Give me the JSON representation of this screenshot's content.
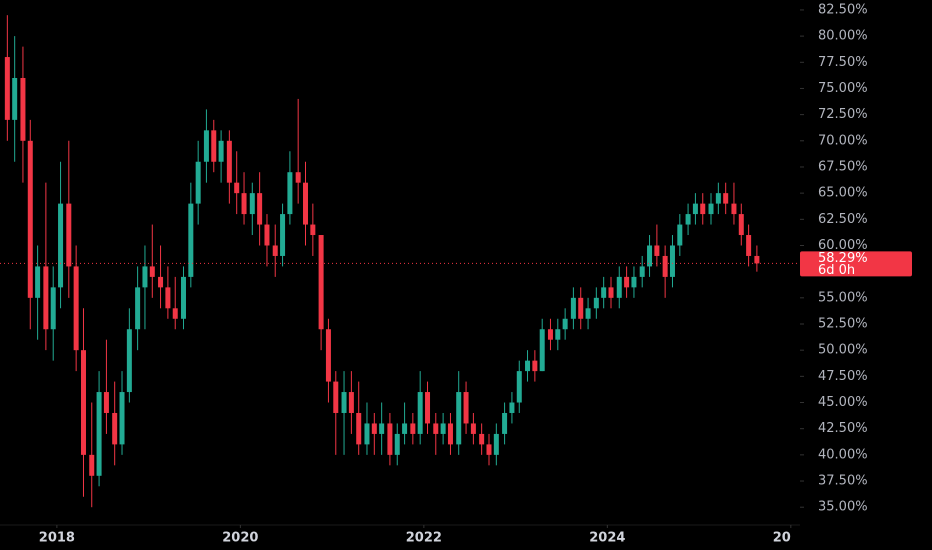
{
  "chart_data": {
    "type": "candlestick",
    "up_color": "#22ab94",
    "down_color": "#f23645",
    "xlim": [
      2017.38,
      2026.1
    ],
    "xticks": [
      2018,
      2020,
      2022,
      2024,
      {
        "value": 2026,
        "label": "20"
      }
    ],
    "ylim": [
      33.3,
      83.45
    ],
    "yticks": [
      {
        "value": 35,
        "label": "35.00%"
      },
      {
        "value": 37.5,
        "label": "37.50%"
      },
      {
        "value": 40,
        "label": "40.00%"
      },
      {
        "value": 42.5,
        "label": "42.50%"
      },
      {
        "value": 45,
        "label": "45.00%"
      },
      {
        "value": 47.5,
        "label": "47.50%"
      },
      {
        "value": 50,
        "label": "50.00%"
      },
      {
        "value": 52.5,
        "label": "52.50%"
      },
      {
        "value": 55,
        "label": "55.00%"
      },
      {
        "value": 57.5,
        "label": "57.50%"
      },
      {
        "value": 60,
        "label": "60.00%"
      },
      {
        "value": 62.5,
        "label": "62.50%"
      },
      {
        "value": 65,
        "label": "65.00%"
      },
      {
        "value": 67.5,
        "label": "67.50%"
      },
      {
        "value": 70,
        "label": "70.00%"
      },
      {
        "value": 72.5,
        "label": "72.50%"
      },
      {
        "value": 75,
        "label": "75.00%"
      },
      {
        "value": 77.5,
        "label": "77.50%"
      },
      {
        "value": 80,
        "label": "80.00%"
      },
      {
        "value": 82.5,
        "label": "82.50%"
      }
    ],
    "last_price": {
      "value": 58.29,
      "label": "58.29%"
    },
    "countdown": "6d 0h",
    "x": [
      2017.46,
      2017.54,
      2017.63,
      2017.71,
      2017.79,
      2017.88,
      2017.96,
      2018.04,
      2018.13,
      2018.21,
      2018.29,
      2018.38,
      2018.46,
      2018.54,
      2018.63,
      2018.71,
      2018.79,
      2018.88,
      2018.96,
      2019.04,
      2019.13,
      2019.21,
      2019.29,
      2019.38,
      2019.46,
      2019.54,
      2019.63,
      2019.71,
      2019.79,
      2019.88,
      2019.96,
      2020.04,
      2020.13,
      2020.21,
      2020.29,
      2020.38,
      2020.46,
      2020.54,
      2020.63,
      2020.71,
      2020.79,
      2020.88,
      2020.96,
      2021.04,
      2021.13,
      2021.21,
      2021.29,
      2021.38,
      2021.46,
      2021.54,
      2021.63,
      2021.71,
      2021.79,
      2021.88,
      2021.96,
      2022.04,
      2022.13,
      2022.21,
      2022.29,
      2022.38,
      2022.46,
      2022.54,
      2022.63,
      2022.71,
      2022.79,
      2022.88,
      2022.96,
      2023.04,
      2023.13,
      2023.21,
      2023.29,
      2023.38,
      2023.46,
      2023.54,
      2023.63,
      2023.71,
      2023.79,
      2023.88,
      2023.96,
      2024.04,
      2024.13,
      2024.21,
      2024.29,
      2024.38,
      2024.46,
      2024.54,
      2024.63,
      2024.71,
      2024.79,
      2024.88,
      2024.96,
      2025.04,
      2025.13,
      2025.21,
      2025.29,
      2025.38,
      2025.46,
      2025.54,
      2025.63
    ],
    "open": [
      78,
      72,
      76,
      70,
      55,
      58,
      52,
      56,
      64,
      58,
      50,
      40,
      38,
      46,
      44,
      41,
      46,
      52,
      56,
      58,
      57,
      56,
      54,
      53,
      57,
      64,
      68,
      71,
      68,
      70,
      66,
      65,
      63,
      65,
      62,
      60,
      59,
      63,
      67,
      66,
      62,
      61,
      52,
      47,
      44,
      46,
      44,
      41,
      43,
      42,
      43,
      40,
      42,
      43,
      42,
      46,
      43,
      42,
      43,
      41,
      46,
      43,
      42,
      41,
      40,
      42,
      44,
      45,
      48,
      49,
      48,
      52,
      51,
      52,
      53,
      55,
      53,
      54,
      55,
      56,
      55,
      57,
      56,
      57,
      58,
      60,
      59,
      57,
      60,
      62,
      63,
      64,
      63,
      64,
      65,
      64,
      63,
      61,
      59
    ],
    "high": [
      82,
      80,
      79,
      72,
      60,
      66,
      58,
      68,
      70,
      60,
      54,
      45,
      48,
      51,
      47,
      48,
      54,
      58,
      60,
      62,
      60,
      58,
      57,
      58,
      66,
      70,
      73,
      72,
      71,
      71,
      69,
      67,
      66,
      67,
      63,
      62,
      64,
      69,
      74,
      68,
      64,
      61,
      53,
      48,
      48,
      48,
      47,
      45,
      44,
      45,
      44,
      43,
      45,
      44,
      48,
      47,
      44,
      44,
      44,
      48,
      47,
      44,
      43,
      42,
      43,
      45,
      46,
      49,
      50,
      50,
      53,
      53,
      53,
      54,
      56,
      56,
      55,
      56,
      57,
      57,
      58,
      58,
      58,
      59,
      61,
      62,
      60,
      61,
      63,
      64,
      65,
      65,
      65,
      66,
      66,
      66,
      64,
      62,
      60
    ],
    "low": [
      70,
      68,
      66,
      52,
      51,
      50,
      49,
      54,
      55,
      48,
      36,
      35,
      37,
      42,
      39,
      40,
      45,
      50,
      52,
      55,
      54,
      53,
      52,
      52,
      56,
      62,
      66,
      67,
      66,
      64,
      63,
      62,
      61,
      60,
      58,
      57,
      58,
      62,
      64,
      60,
      59,
      50,
      45,
      40,
      40,
      42,
      40,
      40,
      40,
      40,
      39,
      39,
      41,
      41,
      41,
      42,
      40,
      41,
      40,
      40,
      42,
      41,
      40,
      39,
      39,
      41,
      43,
      44,
      47,
      47,
      48,
      50,
      50,
      51,
      52,
      52,
      52,
      53,
      54,
      54,
      54,
      55,
      55,
      56,
      57,
      58,
      55,
      56,
      59,
      61,
      62,
      62,
      62,
      63,
      63,
      62,
      60,
      58,
      57.5
    ],
    "close": [
      72,
      76,
      70,
      55,
      58,
      52,
      56,
      64,
      58,
      50,
      40,
      38,
      46,
      44,
      41,
      46,
      52,
      56,
      58,
      57,
      56,
      54,
      53,
      57,
      64,
      68,
      71,
      68,
      70,
      66,
      65,
      63,
      65,
      62,
      60,
      59,
      63,
      67,
      66,
      62,
      61,
      52,
      47,
      44,
      46,
      44,
      41,
      43,
      42,
      43,
      40,
      42,
      43,
      42,
      46,
      43,
      42,
      43,
      41,
      46,
      43,
      42,
      41,
      40,
      42,
      44,
      45,
      48,
      49,
      48,
      52,
      51,
      52,
      53,
      55,
      53,
      54,
      55,
      56,
      55,
      57,
      56,
      57,
      58,
      60,
      59,
      57,
      60,
      62,
      63,
      64,
      63,
      64,
      65,
      64,
      63,
      61,
      59,
      58.29
    ]
  }
}
